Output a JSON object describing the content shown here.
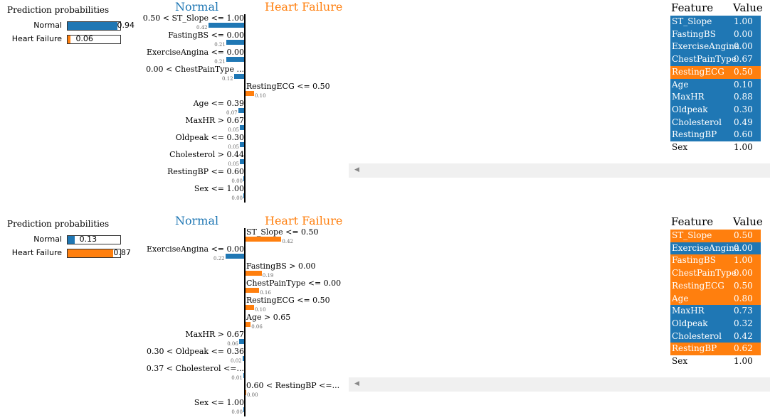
{
  "colors": {
    "negative": "#1f77b4",
    "positive": "#ff7f0e"
  },
  "explanations": [
    {
      "probabilities": {
        "title": "Prediction probabilities",
        "classes": [
          {
            "label": "Normal",
            "value": 0.94,
            "value_text": "0.94",
            "color": "#1f77b4"
          },
          {
            "label": "Heart Failure",
            "value": 0.06,
            "value_text": "0.06",
            "color": "#ff7f0e"
          }
        ]
      },
      "headers": {
        "negative": "Normal",
        "positive": "Heart Failure"
      },
      "features": [
        {
          "label": "0.50 < ST_Slope <= 1.00",
          "weight": "0.42",
          "value": 0.42,
          "side": "negative"
        },
        {
          "label": "FastingBS <= 0.00",
          "weight": "0.21",
          "value": 0.21,
          "side": "negative"
        },
        {
          "label": "ExerciseAngina <= 0.00",
          "weight": "0.21",
          "value": 0.21,
          "side": "negative"
        },
        {
          "label": "0.00 < ChestPainType ...",
          "weight": "0.12",
          "value": 0.12,
          "side": "negative"
        },
        {
          "label": "RestingECG <= 0.50",
          "weight": "0.10",
          "value": 0.1,
          "side": "positive"
        },
        {
          "label": "Age <= 0.39",
          "weight": "0.07",
          "value": 0.07,
          "side": "negative"
        },
        {
          "label": "MaxHR > 0.67",
          "weight": "0.05",
          "value": 0.05,
          "side": "negative"
        },
        {
          "label": "Oldpeak <= 0.30",
          "weight": "0.05",
          "value": 0.05,
          "side": "negative"
        },
        {
          "label": "Cholesterol > 0.44",
          "weight": "0.05",
          "value": 0.05,
          "side": "negative"
        },
        {
          "label": "RestingBP <= 0.60",
          "weight": "0.00",
          "value": 0.0,
          "side": "negative"
        },
        {
          "label": "Sex <= 1.00",
          "weight": "0.00",
          "value": 0.0,
          "side": "negative"
        }
      ],
      "table": {
        "headers": [
          "Feature",
          "Value"
        ],
        "rows": [
          {
            "feature": "ST_Slope",
            "value": "1.00",
            "side": "negative"
          },
          {
            "feature": "FastingBS",
            "value": "0.00",
            "side": "negative"
          },
          {
            "feature": "ExerciseAngina",
            "value": "0.00",
            "side": "negative"
          },
          {
            "feature": "ChestPainType",
            "value": "0.67",
            "side": "negative"
          },
          {
            "feature": "RestingECG",
            "value": "0.50",
            "side": "positive"
          },
          {
            "feature": "Age",
            "value": "0.10",
            "side": "negative"
          },
          {
            "feature": "MaxHR",
            "value": "0.88",
            "side": "negative"
          },
          {
            "feature": "Oldpeak",
            "value": "0.30",
            "side": "negative"
          },
          {
            "feature": "Cholesterol",
            "value": "0.49",
            "side": "negative"
          },
          {
            "feature": "RestingBP",
            "value": "0.60",
            "side": "negative"
          },
          {
            "feature": "Sex",
            "value": "1.00",
            "side": "none"
          }
        ]
      },
      "scroll_arrow": "◀"
    },
    {
      "probabilities": {
        "title": "Prediction probabilities",
        "classes": [
          {
            "label": "Normal",
            "value": 0.13,
            "value_text": "0.13",
            "color": "#1f77b4"
          },
          {
            "label": "Heart Failure",
            "value": 0.87,
            "value_text": "0.87",
            "color": "#ff7f0e"
          }
        ]
      },
      "headers": {
        "negative": "Normal",
        "positive": "Heart Failure"
      },
      "features": [
        {
          "label": "ST_Slope <= 0.50",
          "weight": "0.42",
          "value": 0.42,
          "side": "positive"
        },
        {
          "label": "ExerciseAngina <= 0.00",
          "weight": "0.22",
          "value": 0.22,
          "side": "negative"
        },
        {
          "label": "FastingBS > 0.00",
          "weight": "0.19",
          "value": 0.19,
          "side": "positive"
        },
        {
          "label": "ChestPainType <= 0.00",
          "weight": "0.16",
          "value": 0.16,
          "side": "positive"
        },
        {
          "label": "RestingECG <= 0.50",
          "weight": "0.10",
          "value": 0.1,
          "side": "positive"
        },
        {
          "label": "Age > 0.65",
          "weight": "0.06",
          "value": 0.06,
          "side": "positive"
        },
        {
          "label": "MaxHR > 0.67",
          "weight": "0.06",
          "value": 0.06,
          "side": "negative"
        },
        {
          "label": "0.30 < Oldpeak <= 0.36",
          "weight": "0.02",
          "value": 0.02,
          "side": "negative"
        },
        {
          "label": "0.37 < Cholesterol <=...",
          "weight": "0.01",
          "value": 0.01,
          "side": "negative"
        },
        {
          "label": "0.60 < RestingBP <=...",
          "weight": "0.00",
          "value": 0.0,
          "side": "positive"
        },
        {
          "label": "Sex <= 1.00",
          "weight": "0.00",
          "value": 0.0,
          "side": "negative"
        }
      ],
      "table": {
        "headers": [
          "Feature",
          "Value"
        ],
        "rows": [
          {
            "feature": "ST_Slope",
            "value": "0.50",
            "side": "positive"
          },
          {
            "feature": "ExerciseAngina",
            "value": "0.00",
            "side": "negative"
          },
          {
            "feature": "FastingBS",
            "value": "1.00",
            "side": "positive"
          },
          {
            "feature": "ChestPainType",
            "value": "0.00",
            "side": "positive"
          },
          {
            "feature": "RestingECG",
            "value": "0.50",
            "side": "positive"
          },
          {
            "feature": "Age",
            "value": "0.80",
            "side": "positive"
          },
          {
            "feature": "MaxHR",
            "value": "0.73",
            "side": "negative"
          },
          {
            "feature": "Oldpeak",
            "value": "0.32",
            "side": "negative"
          },
          {
            "feature": "Cholesterol",
            "value": "0.42",
            "side": "negative"
          },
          {
            "feature": "RestingBP",
            "value": "0.62",
            "side": "positive"
          },
          {
            "feature": "Sex",
            "value": "1.00",
            "side": "none"
          }
        ]
      },
      "scroll_arrow": "◀"
    }
  ]
}
